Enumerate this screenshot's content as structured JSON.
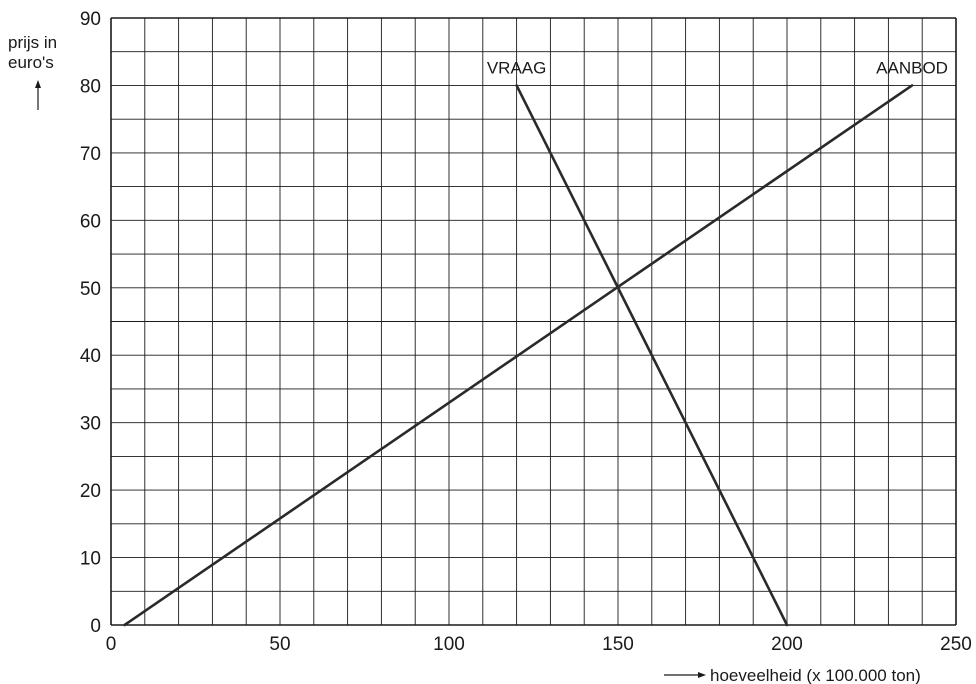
{
  "chart_data": {
    "type": "line",
    "xlabel": "hoeveelheid (x 100.000 ton)",
    "ylabel_line1": "prijs in",
    "ylabel_line2": "euro's",
    "xlim": [
      0,
      250
    ],
    "ylim": [
      0,
      90
    ],
    "x_ticks": [
      0,
      50,
      100,
      150,
      200,
      250
    ],
    "y_ticks": [
      0,
      10,
      20,
      30,
      40,
      50,
      60,
      70,
      80,
      90
    ],
    "x_grid_step": 10,
    "y_grid_step": 5,
    "grid": true,
    "series": [
      {
        "name": "VRAAG",
        "x": [
          120,
          200
        ],
        "y": [
          80,
          0
        ]
      },
      {
        "name": "AANBOD",
        "x": [
          4,
          237
        ],
        "y": [
          0,
          80
        ]
      }
    ]
  },
  "colors": {
    "grid": "#1a1a1a",
    "line": "#2a2a2a",
    "text": "#1a1a1a"
  }
}
